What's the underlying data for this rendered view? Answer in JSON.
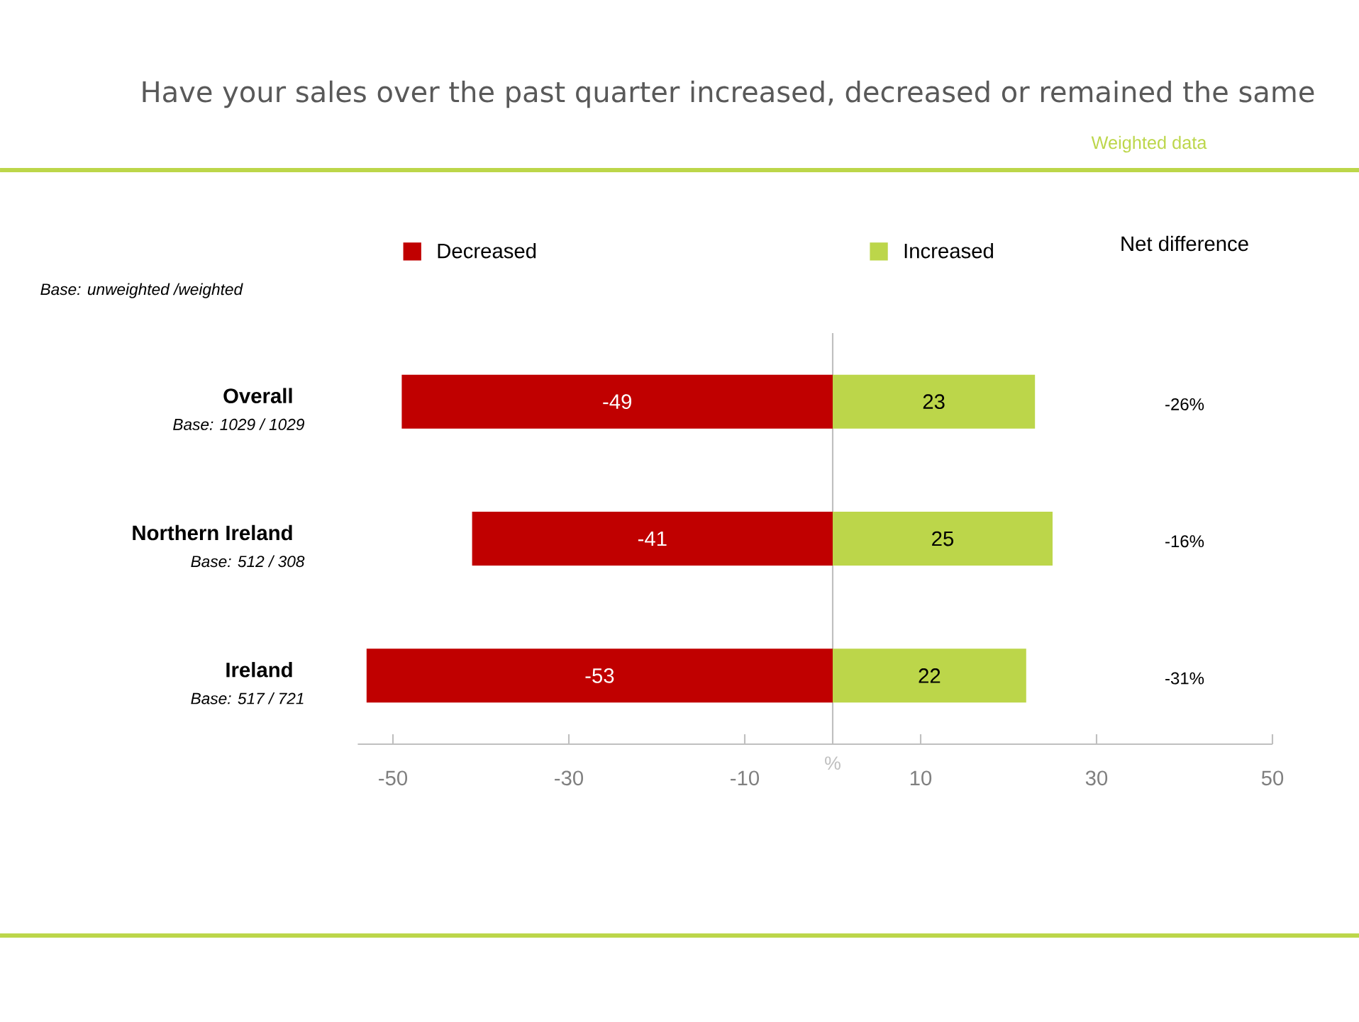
{
  "chart_data": {
    "type": "bar",
    "orientation": "horizontal",
    "stacked": true,
    "title": "Have your sales over the past quarter increased, decreased or remained the same",
    "xlabel": "%",
    "categories": [
      "Overall",
      "Northern Ireland",
      "Ireland"
    ],
    "series": [
      {
        "name": "Decreased",
        "color": "#c00000",
        "values": [
          -49,
          -41,
          -53
        ]
      },
      {
        "name": "Increased",
        "color": "#bcd64a",
        "values": [
          23,
          25,
          22
        ]
      }
    ],
    "data_labels": true,
    "xlim": [
      -54,
      50
    ],
    "xticks": [
      -50,
      -30,
      -10,
      10,
      30,
      50
    ],
    "legend": "top",
    "annotations": [
      "Net difference",
      "-26%",
      "-16%",
      "-31%",
      "Weighted data",
      "Base: unweighted /weighted",
      "Base: 1029 / 1029",
      "Base: 512 / 308",
      "Base: 517 / 721"
    ]
  }
}
